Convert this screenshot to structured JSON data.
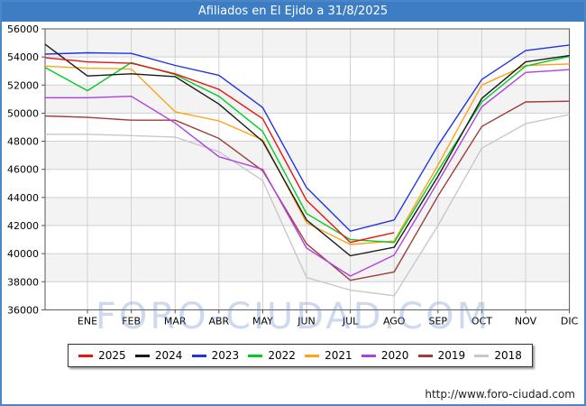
{
  "title": "Afiliados en El Ejido a 31/8/2025",
  "watermark": "FORO-CIUDAD.COM",
  "source_url": "http://www.foro-ciudad.com",
  "chart_data": {
    "type": "line",
    "title": "Afiliados en El Ejido a 31/8/2025",
    "xlabel": "",
    "ylabel": "",
    "x_categories": [
      "ENE",
      "FEB",
      "MAR",
      "ABR",
      "MAY",
      "JUN",
      "JUL",
      "AGO",
      "SEP",
      "OCT",
      "NOV",
      "DIC"
    ],
    "y_axis": {
      "min": 36000,
      "max": 56000,
      "step": 2000
    },
    "grid": true,
    "legend_position": "bottom",
    "note_start_value": "value at left plot edge (previous December) where each polyline begins",
    "series": [
      {
        "name": "2025",
        "color": "#ee1111",
        "start_value": 53950,
        "values": [
          53650,
          53550,
          52800,
          51700,
          49600,
          43800,
          40800,
          41500,
          null,
          null,
          null,
          null
        ]
      },
      {
        "name": "2024",
        "color": "#1a1a1a",
        "start_value": 54900,
        "values": [
          52650,
          52800,
          52600,
          50650,
          48000,
          42400,
          39850,
          40450,
          45500,
          51050,
          53650,
          54100
        ]
      },
      {
        "name": "2023",
        "color": "#2233e6",
        "start_value": 54200,
        "values": [
          54300,
          54250,
          53400,
          52700,
          50400,
          44700,
          41600,
          42400,
          47700,
          52400,
          54450,
          54850
        ]
      },
      {
        "name": "2022",
        "color": "#00cc22",
        "start_value": 53250,
        "values": [
          51600,
          53600,
          52750,
          51200,
          48700,
          42850,
          41000,
          40800,
          45900,
          50800,
          53350,
          54050
        ]
      },
      {
        "name": "2021",
        "color": "#ffa216",
        "start_value": 53350,
        "values": [
          53200,
          53150,
          50100,
          49450,
          48100,
          42200,
          40650,
          40900,
          46300,
          52000,
          53400,
          53500
        ]
      },
      {
        "name": "2020",
        "color": "#b040e0",
        "start_value": 51100,
        "values": [
          51100,
          51200,
          49300,
          46900,
          46000,
          40400,
          38400,
          39900,
          45100,
          50450,
          52900,
          53100
        ]
      },
      {
        "name": "2019",
        "color": "#a03c3c",
        "start_value": 49800,
        "values": [
          49700,
          49500,
          49500,
          48200,
          45900,
          40700,
          38100,
          38700,
          44100,
          49050,
          50800,
          50850
        ]
      },
      {
        "name": "2018",
        "color": "#c8c8c8",
        "start_value": 48500,
        "values": [
          48500,
          48400,
          48300,
          47250,
          45200,
          38300,
          37400,
          37000,
          42000,
          47500,
          49250,
          49900
        ]
      }
    ]
  }
}
